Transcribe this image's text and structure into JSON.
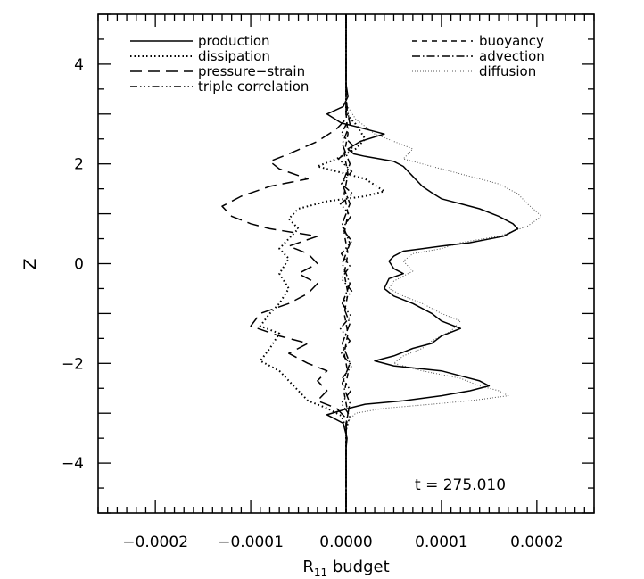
{
  "chart_data": {
    "type": "line",
    "orientation": "vertical-profile",
    "xlabel_main": "R",
    "xlabel_sub": "11",
    "xlabel_rest": " budget",
    "ylabel": "Z",
    "annotation": "t = 275.010",
    "xlim": [
      -0.00026,
      0.00026
    ],
    "ylim": [
      -5,
      5
    ],
    "xticks": [
      -0.0002,
      -0.0001,
      0.0,
      0.0001,
      0.0002
    ],
    "xtick_labels": [
      "−0.0002",
      "−0.0001",
      "0.0000",
      "0.0001",
      "0.0002"
    ],
    "yticks": [
      -4,
      -2,
      0,
      2,
      4
    ],
    "ytick_labels": [
      "−4",
      "−2",
      "0",
      "2",
      "4"
    ],
    "grid": false,
    "legend_left": [
      "production",
      "dissipation",
      "pressure−strain",
      "triple correlation"
    ],
    "legend_right": [
      "buoyancy",
      "advection",
      "diffusion"
    ],
    "series": [
      {
        "name": "production",
        "style": "solid",
        "color": "#000000",
        "points": [
          [
            0,
            5
          ],
          [
            0,
            3.6
          ],
          [
            2e-06,
            3.35
          ],
          [
            -3e-06,
            3.15
          ],
          [
            -2e-05,
            3.0
          ],
          [
            -5e-06,
            2.82
          ],
          [
            1e-05,
            2.75
          ],
          [
            4e-05,
            2.6
          ],
          [
            1.5e-05,
            2.45
          ],
          [
            2e-06,
            2.3
          ],
          [
            8e-06,
            2.2
          ],
          [
            2e-05,
            2.15
          ],
          [
            5e-05,
            2.05
          ],
          [
            6e-05,
            1.95
          ],
          [
            7e-05,
            1.75
          ],
          [
            8e-05,
            1.55
          ],
          [
            9e-05,
            1.42
          ],
          [
            0.0001,
            1.3
          ],
          [
            0.00012,
            1.2
          ],
          [
            0.00014,
            1.1
          ],
          [
            0.00016,
            0.95
          ],
          [
            0.000175,
            0.8
          ],
          [
            0.00018,
            0.7
          ],
          [
            0.000165,
            0.55
          ],
          [
            0.00013,
            0.42
          ],
          [
            0.0001,
            0.35
          ],
          [
            8e-05,
            0.3
          ],
          [
            6e-05,
            0.25
          ],
          [
            5e-05,
            0.15
          ],
          [
            4.5e-05,
            0.05
          ],
          [
            5e-05,
            -0.1
          ],
          [
            6e-05,
            -0.2
          ],
          [
            4.5e-05,
            -0.3
          ],
          [
            4e-05,
            -0.5
          ],
          [
            5e-05,
            -0.65
          ],
          [
            7e-05,
            -0.8
          ],
          [
            9e-05,
            -1.0
          ],
          [
            0.0001,
            -1.15
          ],
          [
            0.00012,
            -1.3
          ],
          [
            0.0001,
            -1.45
          ],
          [
            9e-05,
            -1.6
          ],
          [
            7e-05,
            -1.7
          ],
          [
            5e-05,
            -1.85
          ],
          [
            3e-05,
            -1.95
          ],
          [
            5e-05,
            -2.05
          ],
          [
            0.0001,
            -2.15
          ],
          [
            0.00012,
            -2.25
          ],
          [
            0.00014,
            -2.35
          ],
          [
            0.00015,
            -2.45
          ],
          [
            0.00013,
            -2.55
          ],
          [
            0.0001,
            -2.65
          ],
          [
            6e-05,
            -2.75
          ],
          [
            2e-05,
            -2.82
          ],
          [
            3e-06,
            -2.9
          ],
          [
            -2e-05,
            -3.03
          ],
          [
            -3e-06,
            -3.2
          ],
          [
            1e-06,
            -3.5
          ],
          [
            0,
            -3.7
          ],
          [
            0,
            -5
          ]
        ]
      },
      {
        "name": "dissipation",
        "style": "dotted",
        "color": "#000000",
        "points": [
          [
            0,
            5
          ],
          [
            0,
            3.0
          ],
          [
            1e-05,
            2.8
          ],
          [
            2e-05,
            2.5
          ],
          [
            1e-05,
            2.3
          ],
          [
            -1e-05,
            2.1
          ],
          [
            -3e-05,
            1.95
          ],
          [
            -1e-05,
            1.85
          ],
          [
            2e-05,
            1.7
          ],
          [
            4e-05,
            1.45
          ],
          [
            2e-05,
            1.35
          ],
          [
            -2e-05,
            1.25
          ],
          [
            -5e-05,
            1.1
          ],
          [
            -6e-05,
            0.9
          ],
          [
            -5e-05,
            0.7
          ],
          [
            -6e-05,
            0.5
          ],
          [
            -7e-05,
            0.3
          ],
          [
            -6e-05,
            0.1
          ],
          [
            -7e-05,
            -0.2
          ],
          [
            -6e-05,
            -0.5
          ],
          [
            -7e-05,
            -0.8
          ],
          [
            -8e-05,
            -1.0
          ],
          [
            -9e-05,
            -1.25
          ],
          [
            -7e-05,
            -1.4
          ],
          [
            -8e-05,
            -1.7
          ],
          [
            -9e-05,
            -1.95
          ],
          [
            -7e-05,
            -2.15
          ],
          [
            -6e-05,
            -2.35
          ],
          [
            -5e-05,
            -2.55
          ],
          [
            -4e-05,
            -2.75
          ],
          [
            -2e-05,
            -2.9
          ],
          [
            -5e-06,
            -3.05
          ],
          [
            0,
            -3.3
          ],
          [
            0,
            -5
          ]
        ]
      },
      {
        "name": "pressure−strain",
        "style": "longdash",
        "color": "#000000",
        "points": [
          [
            0,
            5
          ],
          [
            0,
            2.9
          ],
          [
            -1e-05,
            2.7
          ],
          [
            -3e-05,
            2.45
          ],
          [
            -6e-05,
            2.2
          ],
          [
            -8e-05,
            2.05
          ],
          [
            -7e-05,
            1.9
          ],
          [
            -4e-05,
            1.7
          ],
          [
            -8e-05,
            1.55
          ],
          [
            -0.00011,
            1.35
          ],
          [
            -0.00013,
            1.15
          ],
          [
            -0.00012,
            0.95
          ],
          [
            -0.0001,
            0.8
          ],
          [
            -8e-05,
            0.7
          ],
          [
            -3e-05,
            0.55
          ],
          [
            -6e-05,
            0.35
          ],
          [
            -4e-05,
            0.2
          ],
          [
            -3e-05,
            0.0
          ],
          [
            -5e-05,
            -0.2
          ],
          [
            -3e-05,
            -0.4
          ],
          [
            -4e-05,
            -0.6
          ],
          [
            -6e-05,
            -0.8
          ],
          [
            -9e-05,
            -1.0
          ],
          [
            -0.0001,
            -1.25
          ],
          [
            -7e-05,
            -1.45
          ],
          [
            -4e-05,
            -1.6
          ],
          [
            -6e-05,
            -1.8
          ],
          [
            -4e-05,
            -2.0
          ],
          [
            -2e-05,
            -2.15
          ],
          [
            -3e-05,
            -2.35
          ],
          [
            -2e-05,
            -2.55
          ],
          [
            -3e-05,
            -2.75
          ],
          [
            -1e-05,
            -2.9
          ],
          [
            0,
            -3.1
          ],
          [
            0,
            -5
          ]
        ]
      },
      {
        "name": "triple correlation",
        "style": "dashdotdot",
        "color": "#000000",
        "points": [
          [
            0,
            5
          ],
          [
            0,
            3.3
          ],
          [
            3e-06,
            2.9
          ],
          [
            -5e-06,
            2.6
          ],
          [
            8e-06,
            2.35
          ],
          [
            -8e-06,
            2.1
          ],
          [
            6e-06,
            1.85
          ],
          [
            -5e-06,
            1.6
          ],
          [
            7e-06,
            1.4
          ],
          [
            -6e-06,
            1.2
          ],
          [
            5e-06,
            0.95
          ],
          [
            -4e-06,
            0.7
          ],
          [
            6e-06,
            0.45
          ],
          [
            -5e-06,
            0.2
          ],
          [
            4e-06,
            -0.05
          ],
          [
            -5e-06,
            -0.3
          ],
          [
            6e-06,
            -0.55
          ],
          [
            -4e-06,
            -0.8
          ],
          [
            5e-06,
            -1.05
          ],
          [
            -6e-06,
            -1.3
          ],
          [
            4e-06,
            -1.55
          ],
          [
            -5e-06,
            -1.8
          ],
          [
            6e-06,
            -2.05
          ],
          [
            -4e-06,
            -2.3
          ],
          [
            5e-06,
            -2.55
          ],
          [
            -5e-06,
            -2.8
          ],
          [
            4e-06,
            -3.05
          ],
          [
            0,
            -3.35
          ],
          [
            0,
            -5
          ]
        ]
      },
      {
        "name": "buoyancy",
        "style": "dashed",
        "color": "#000000",
        "points": [
          [
            0,
            5
          ],
          [
            0,
            3.0
          ],
          [
            2e-06,
            2.6
          ],
          [
            -2e-06,
            2.2
          ],
          [
            2e-06,
            1.8
          ],
          [
            -2e-06,
            1.4
          ],
          [
            2e-06,
            1.0
          ],
          [
            -2e-06,
            0.6
          ],
          [
            2e-06,
            0.2
          ],
          [
            -2e-06,
            -0.2
          ],
          [
            2e-06,
            -0.6
          ],
          [
            -2e-06,
            -1.0
          ],
          [
            2e-06,
            -1.4
          ],
          [
            -2e-06,
            -1.8
          ],
          [
            2e-06,
            -2.2
          ],
          [
            -2e-06,
            -2.6
          ],
          [
            2e-06,
            -3.0
          ],
          [
            0,
            -3.3
          ],
          [
            0,
            -5
          ]
        ]
      },
      {
        "name": "advection",
        "style": "dashdot",
        "color": "#000000",
        "points": [
          [
            0,
            5
          ],
          [
            0,
            3.2
          ],
          [
            4e-06,
            2.8
          ],
          [
            -4e-06,
            2.4
          ],
          [
            4e-06,
            2.0
          ],
          [
            -4e-06,
            1.6
          ],
          [
            4e-06,
            1.2
          ],
          [
            -4e-06,
            0.8
          ],
          [
            4e-06,
            0.4
          ],
          [
            -4e-06,
            0.0
          ],
          [
            4e-06,
            -0.4
          ],
          [
            -4e-06,
            -0.8
          ],
          [
            4e-06,
            -1.2
          ],
          [
            -4e-06,
            -1.6
          ],
          [
            4e-06,
            -2.0
          ],
          [
            -4e-06,
            -2.4
          ],
          [
            4e-06,
            -2.8
          ],
          [
            0,
            -3.2
          ],
          [
            0,
            -5
          ]
        ]
      },
      {
        "name": "diffusion",
        "style": "finedot",
        "color": "#555555",
        "points": [
          [
            0,
            5
          ],
          [
            0,
            3.2
          ],
          [
            1e-05,
            2.9
          ],
          [
            3e-05,
            2.6
          ],
          [
            5e-05,
            2.45
          ],
          [
            7e-05,
            2.3
          ],
          [
            6e-05,
            2.1
          ],
          [
            9e-05,
            1.95
          ],
          [
            0.00013,
            1.75
          ],
          [
            0.00016,
            1.6
          ],
          [
            0.00018,
            1.4
          ],
          [
            0.00019,
            1.2
          ],
          [
            0.000205,
            0.95
          ],
          [
            0.00019,
            0.75
          ],
          [
            0.00016,
            0.55
          ],
          [
            0.00012,
            0.42
          ],
          [
            0.0001,
            0.3
          ],
          [
            7e-05,
            0.2
          ],
          [
            6e-05,
            0.05
          ],
          [
            7e-05,
            -0.15
          ],
          [
            5e-05,
            -0.35
          ],
          [
            4.5e-05,
            -0.5
          ],
          [
            6e-05,
            -0.65
          ],
          [
            8e-05,
            -0.8
          ],
          [
            0.0001,
            -1.0
          ],
          [
            0.00012,
            -1.15
          ],
          [
            0.00011,
            -1.35
          ],
          [
            9e-05,
            -1.55
          ],
          [
            8e-05,
            -1.7
          ],
          [
            6e-05,
            -1.85
          ],
          [
            5e-05,
            -2.0
          ],
          [
            8e-05,
            -2.15
          ],
          [
            0.00012,
            -2.3
          ],
          [
            0.00014,
            -2.45
          ],
          [
            0.00016,
            -2.55
          ],
          [
            0.00017,
            -2.65
          ],
          [
            0.00013,
            -2.75
          ],
          [
            9e-05,
            -2.82
          ],
          [
            4e-05,
            -2.9
          ],
          [
            1e-05,
            -3.0
          ],
          [
            0,
            -3.2
          ],
          [
            0,
            -5
          ]
        ]
      }
    ]
  }
}
